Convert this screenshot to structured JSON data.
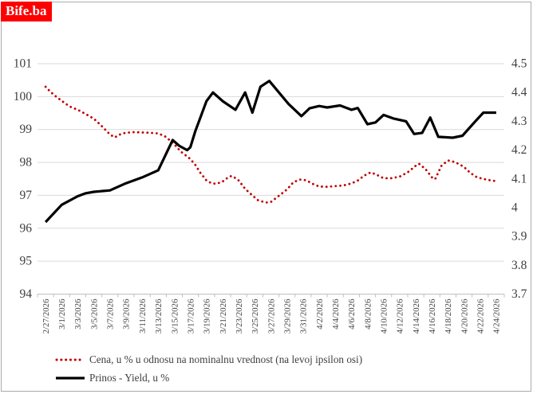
{
  "logo": {
    "text": "Bife.ba",
    "bg": "#fe0000",
    "fg": "#ffffff"
  },
  "chart_data": {
    "type": "line",
    "title": "",
    "xlabel": "",
    "ylabel_left": "Cena u % (na levoj ipsilon osi)",
    "ylabel_right": "Prinos - Yield, u %",
    "grid": "horizontal, light gray",
    "legend_position": "bottom-left",
    "x_tick_labels": [
      "2/27/2026",
      "3/1/2026",
      "3/3/2026",
      "3/5/2026",
      "3/7/2026",
      "3/9/2026",
      "3/11/2026",
      "3/13/2026",
      "3/15/2026",
      "3/17/2026",
      "3/19/2026",
      "3/21/2026",
      "3/23/2026",
      "3/25/2026",
      "3/27/2026",
      "3/29/2026",
      "3/31/2026",
      "4/2/2026",
      "4/4/2026",
      "4/6/2026",
      "4/8/2026",
      "4/10/2026",
      "4/12/2026",
      "4/14/2026",
      "4/16/2026",
      "4/18/2026",
      "4/20/2026",
      "4/22/2026",
      "4/24/2026"
    ],
    "left_axis": {
      "min": 94,
      "max": 101,
      "tick_labels": [
        "101",
        "100",
        "99",
        "98",
        "97",
        "96",
        "95",
        "94"
      ]
    },
    "right_axis": {
      "min": 3.7,
      "max": 4.5,
      "tick_labels": [
        "4.5",
        "4.4",
        "4.3",
        "4.2",
        "4.1",
        "4",
        "3.9",
        "3.8",
        "3.7"
      ]
    },
    "series": [
      {
        "name": "Cena,  u % u odnosu na nominalnu vrednost (na levoj ipsilon osi)",
        "axis": "left",
        "style": "dotted",
        "color": "#c00000",
        "points": [
          [
            0,
            100.3
          ],
          [
            0.3,
            100.15
          ],
          [
            0.6,
            100.02
          ],
          [
            1,
            99.87
          ],
          [
            1.5,
            99.7
          ],
          [
            2,
            99.6
          ],
          [
            2.5,
            99.47
          ],
          [
            3,
            99.33
          ],
          [
            3.5,
            99.1
          ],
          [
            4,
            98.85
          ],
          [
            4.3,
            98.76
          ],
          [
            4.7,
            98.87
          ],
          [
            5,
            98.9
          ],
          [
            5.5,
            98.92
          ],
          [
            6,
            98.91
          ],
          [
            6.5,
            98.9
          ],
          [
            7,
            98.88
          ],
          [
            7.4,
            98.8
          ],
          [
            7.7,
            98.68
          ],
          [
            8,
            98.55
          ],
          [
            8.4,
            98.33
          ],
          [
            8.8,
            98.18
          ],
          [
            9,
            98.1
          ],
          [
            9.3,
            97.93
          ],
          [
            9.6,
            97.7
          ],
          [
            10,
            97.45
          ],
          [
            10.3,
            97.37
          ],
          [
            10.6,
            97.35
          ],
          [
            11,
            97.42
          ],
          [
            11.4,
            97.57
          ],
          [
            11.6,
            97.59
          ],
          [
            12,
            97.45
          ],
          [
            12.4,
            97.2
          ],
          [
            12.8,
            97.02
          ],
          [
            13.2,
            96.85
          ],
          [
            13.7,
            96.78
          ],
          [
            14,
            96.8
          ],
          [
            14.4,
            96.95
          ],
          [
            15,
            97.18
          ],
          [
            15.4,
            97.4
          ],
          [
            15.8,
            97.48
          ],
          [
            16.2,
            97.46
          ],
          [
            16.6,
            97.35
          ],
          [
            17,
            97.27
          ],
          [
            17.5,
            97.26
          ],
          [
            18,
            97.28
          ],
          [
            18.5,
            97.3
          ],
          [
            19,
            97.36
          ],
          [
            19.4,
            97.45
          ],
          [
            19.8,
            97.6
          ],
          [
            20.2,
            97.7
          ],
          [
            20.6,
            97.62
          ],
          [
            21,
            97.52
          ],
          [
            21.5,
            97.52
          ],
          [
            22,
            97.57
          ],
          [
            22.5,
            97.7
          ],
          [
            23,
            97.9
          ],
          [
            23.2,
            97.96
          ],
          [
            23.6,
            97.8
          ],
          [
            24,
            97.55
          ],
          [
            24.2,
            97.49
          ],
          [
            24.6,
            97.9
          ],
          [
            25,
            98.06
          ],
          [
            25.3,
            98.03
          ],
          [
            25.7,
            97.95
          ],
          [
            26,
            97.86
          ],
          [
            26.4,
            97.68
          ],
          [
            26.8,
            97.55
          ],
          [
            27.2,
            97.5
          ],
          [
            27.6,
            97.46
          ],
          [
            28,
            97.43
          ]
        ]
      },
      {
        "name": "Prinos - Yield, u %",
        "axis": "right",
        "style": "solid",
        "color": "#000000",
        "points": [
          [
            0,
            3.95
          ],
          [
            1,
            4.01
          ],
          [
            2,
            4.04
          ],
          [
            2.5,
            4.05
          ],
          [
            3,
            4.055
          ],
          [
            4,
            4.06
          ],
          [
            5,
            4.085
          ],
          [
            6,
            4.105
          ],
          [
            7,
            4.13
          ],
          [
            7.9,
            4.235
          ],
          [
            8.3,
            4.215
          ],
          [
            8.8,
            4.2
          ],
          [
            9,
            4.21
          ],
          [
            9.3,
            4.265
          ],
          [
            10,
            4.37
          ],
          [
            10.4,
            4.4
          ],
          [
            11,
            4.37
          ],
          [
            11.8,
            4.34
          ],
          [
            12.4,
            4.4
          ],
          [
            12.85,
            4.33
          ],
          [
            13.35,
            4.42
          ],
          [
            13.9,
            4.44
          ],
          [
            14.5,
            4.4
          ],
          [
            15.1,
            4.36
          ],
          [
            15.9,
            4.318
          ],
          [
            16.4,
            4.345
          ],
          [
            17,
            4.353
          ],
          [
            17.5,
            4.348
          ],
          [
            18.3,
            4.355
          ],
          [
            19,
            4.34
          ],
          [
            19.4,
            4.346
          ],
          [
            20,
            4.29
          ],
          [
            20.5,
            4.296
          ],
          [
            21,
            4.322
          ],
          [
            21.6,
            4.31
          ],
          [
            22.4,
            4.3
          ],
          [
            22.9,
            4.256
          ],
          [
            23.4,
            4.26
          ],
          [
            23.9,
            4.313
          ],
          [
            24.4,
            4.246
          ],
          [
            25.3,
            4.243
          ],
          [
            25.9,
            4.25
          ],
          [
            26.7,
            4.3
          ],
          [
            27.2,
            4.33
          ],
          [
            28,
            4.33
          ]
        ]
      }
    ],
    "colors": {
      "grid": "#d9d9d9",
      "axis": "#bfbfbf",
      "tick_text": "#404040"
    }
  }
}
